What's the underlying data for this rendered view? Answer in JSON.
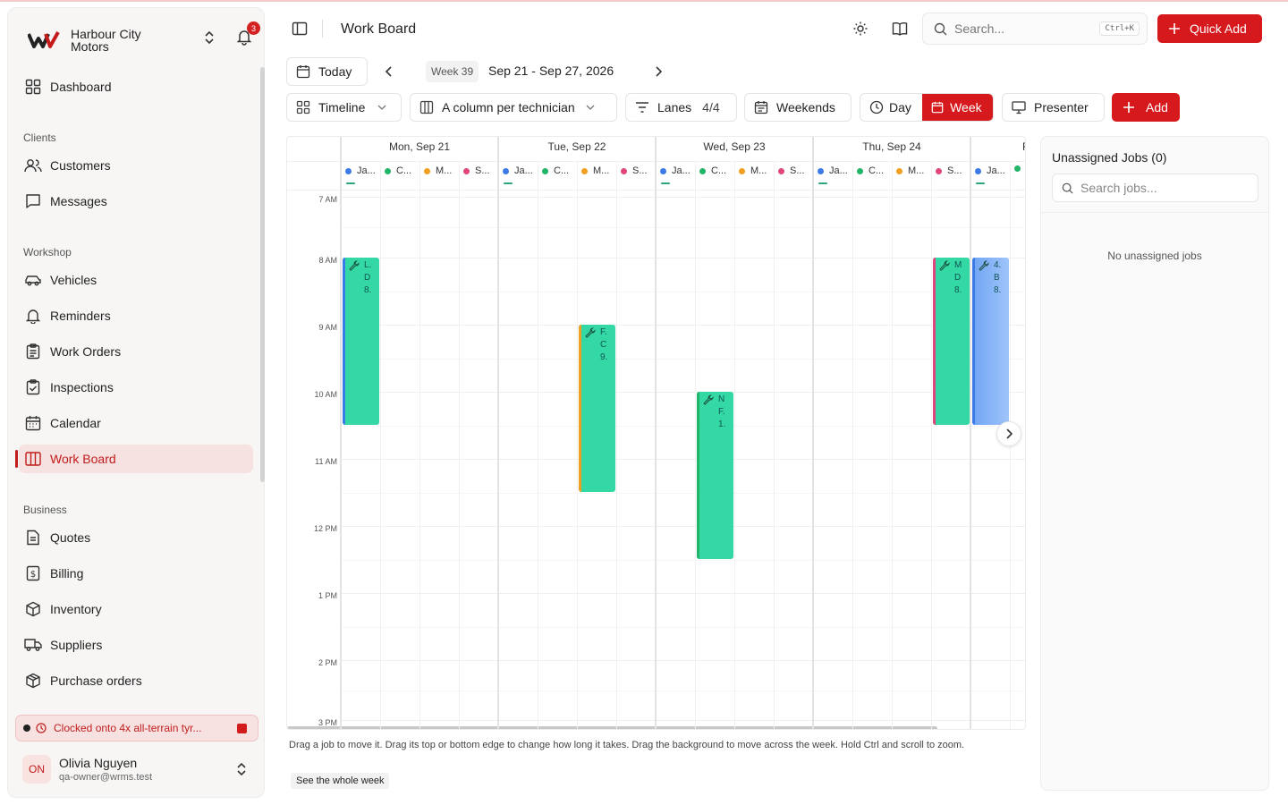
{
  "brand": {
    "name": "Harbour City Motors",
    "notification_count": "3"
  },
  "sidebar": {
    "items_top": [
      {
        "label": "Dashboard"
      }
    ],
    "clients_label": "Clients",
    "clients": [
      {
        "label": "Customers"
      },
      {
        "label": "Messages"
      }
    ],
    "workshop_label": "Workshop",
    "workshop": [
      {
        "label": "Vehicles"
      },
      {
        "label": "Reminders"
      },
      {
        "label": "Work Orders"
      },
      {
        "label": "Inspections"
      },
      {
        "label": "Calendar"
      },
      {
        "label": "Work Board"
      }
    ],
    "business_label": "Business",
    "business": [
      {
        "label": "Quotes"
      },
      {
        "label": "Billing"
      },
      {
        "label": "Inventory"
      },
      {
        "label": "Suppliers"
      },
      {
        "label": "Purchase orders"
      }
    ],
    "clock_banner": "Clocked onto 4x all-terrain tyr...",
    "user": {
      "initials": "ON",
      "name": "Olivia Nguyen",
      "email": "qa-owner@wrms.test"
    }
  },
  "header": {
    "title": "Work Board",
    "search_placeholder": "Search...",
    "search_shortcut": "Ctrl+K",
    "quick_add": "Quick Add"
  },
  "toolbar": {
    "today": "Today",
    "week_label": "Week 39",
    "week_range": "Sep 21 - Sep 27, 2026",
    "timeline": "Timeline",
    "column_mode": "A column per technician",
    "lanes": "Lanes",
    "lanes_count": "4/4",
    "weekends": "Weekends",
    "day": "Day",
    "week": "Week",
    "presenter": "Presenter",
    "add": "Add"
  },
  "board": {
    "days": [
      {
        "label": "Mon, Sep 21"
      },
      {
        "label": "Tue, Sep 22"
      },
      {
        "label": "Wed, Sep 23"
      },
      {
        "label": "Thu, Sep 24"
      },
      {
        "label": "F"
      }
    ],
    "techs": [
      {
        "short": "Ja...",
        "color": "#3b7be8"
      },
      {
        "short": "C...",
        "color": "#22b56a"
      },
      {
        "short": "M...",
        "color": "#f0a020"
      },
      {
        "short": "S...",
        "color": "#e0457b"
      }
    ],
    "times": [
      "7 AM",
      "8 AM",
      "9 AM",
      "10 AM",
      "11 AM",
      "12 PM",
      "1 PM",
      "2 PM",
      "3 PM"
    ],
    "jobs": [
      {
        "lines": [
          "L.",
          "D",
          "8."
        ]
      },
      {
        "lines": [
          "F.",
          "C",
          "9."
        ]
      },
      {
        "lines": [
          "N",
          "F.",
          "1."
        ]
      },
      {
        "lines": [
          "M",
          "D",
          "8."
        ]
      },
      {
        "lines": [
          "4.",
          "B",
          "8."
        ]
      }
    ]
  },
  "hint": "Drag a job to move it. Drag its top or bottom edge to change how long it takes. Drag the background to move across the week. Hold Ctrl and scroll to zoom.",
  "see_week": "See the whole week",
  "unassigned": {
    "title": "Unassigned Jobs (0)",
    "search_placeholder": "Search jobs...",
    "empty": "No unassigned jobs"
  }
}
